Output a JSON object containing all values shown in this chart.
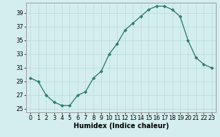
{
  "x": [
    0,
    1,
    2,
    3,
    4,
    5,
    6,
    7,
    8,
    9,
    10,
    11,
    12,
    13,
    14,
    15,
    16,
    17,
    18,
    19,
    20,
    21,
    22,
    23
  ],
  "y": [
    29.5,
    29.0,
    27.0,
    26.0,
    25.5,
    25.5,
    27.0,
    27.5,
    29.5,
    30.5,
    33.0,
    34.5,
    36.5,
    37.5,
    38.5,
    39.5,
    40.0,
    40.0,
    39.5,
    38.5,
    35.0,
    32.5,
    31.5,
    31.0
  ],
  "xlim": [
    -0.5,
    23.5
  ],
  "ylim": [
    24.5,
    40.5
  ],
  "yticks": [
    25,
    27,
    29,
    31,
    33,
    35,
    37,
    39
  ],
  "xticks": [
    0,
    1,
    2,
    3,
    4,
    5,
    6,
    7,
    8,
    9,
    10,
    11,
    12,
    13,
    14,
    15,
    16,
    17,
    18,
    19,
    20,
    21,
    22,
    23
  ],
  "xlabel": "Humidex (Indice chaleur)",
  "line_color": "#2e7d6e",
  "marker": "D",
  "marker_size": 2.2,
  "bg_color": "#d4eeee",
  "grid_color": "#b8d8d8",
  "xlabel_fontsize": 7,
  "tick_fontsize": 6,
  "line_width": 1.0
}
